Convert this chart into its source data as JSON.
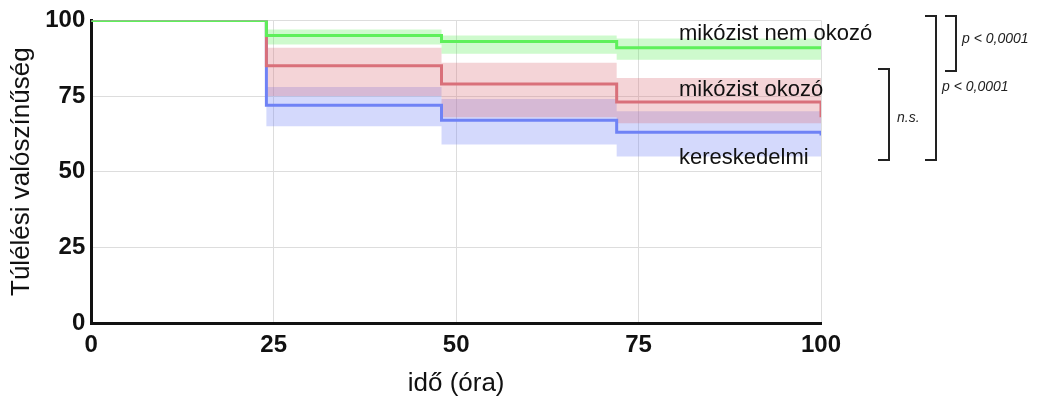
{
  "chart_data": {
    "type": "step",
    "xlabel": "idő (óra)",
    "ylabel": "Túlélési valószínűség",
    "series": [
      {
        "name": "mikózist nem okozó",
        "color": "#5ef05a",
        "x": [
          0,
          24,
          48,
          72,
          100
        ],
        "values": [
          100,
          95,
          93,
          91,
          91
        ],
        "lower": [
          100,
          92,
          89,
          87,
          87
        ],
        "upper": [
          100,
          97,
          95,
          94,
          94
        ]
      },
      {
        "name": "mikózist okozó",
        "color": "#d9707a",
        "x": [
          0,
          24,
          48,
          72,
          100
        ],
        "values": [
          100,
          85,
          79,
          73,
          68
        ],
        "lower": [
          100,
          75,
          68,
          66,
          66
        ],
        "upper": [
          100,
          91,
          86,
          81,
          81
        ]
      },
      {
        "name": "kereskedelmi",
        "color": "#6f82f5",
        "x": [
          0,
          24,
          48,
          72,
          100
        ],
        "values": [
          100,
          72,
          67,
          63,
          62
        ],
        "lower": [
          100,
          65,
          59,
          55,
          55
        ],
        "upper": [
          100,
          78,
          74,
          70,
          70
        ]
      }
    ],
    "xlim": [
      0,
      100
    ],
    "xticks": [
      0,
      25,
      50,
      75,
      100
    ],
    "ylim": [
      0,
      100
    ],
    "yticks": [
      0,
      25,
      50,
      75,
      100
    ],
    "grid": true,
    "legend": false,
    "annotations": [
      "p < 0,0001",
      "n.s.",
      "p < 0,0001"
    ]
  }
}
